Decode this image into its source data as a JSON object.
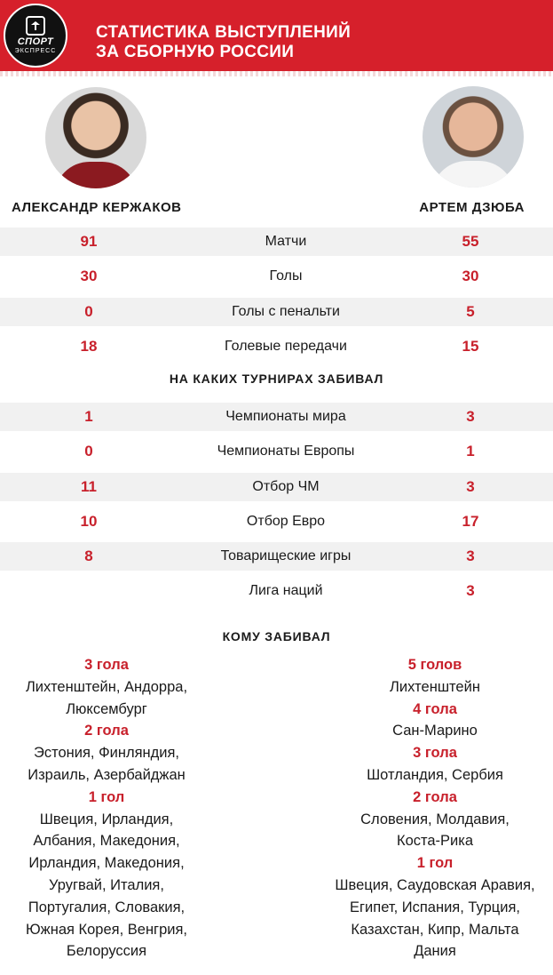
{
  "header": {
    "logo_line1": "СПОРТ",
    "logo_line2": "ЭКСПРЕСС",
    "title_line1": "СТАТИСТИКА ВЫСТУПЛЕНИЙ",
    "title_line2": "ЗА СБОРНУЮ РОССИИ",
    "accent_color": "#d6202b"
  },
  "players": {
    "left": {
      "name": "АЛЕКСАНДР КЕРЖАКОВ"
    },
    "right": {
      "name": "АРТЕМ ДЗЮБА"
    }
  },
  "stats": [
    {
      "label": "Матчи",
      "left": "91",
      "right": "55"
    },
    {
      "label": "Голы",
      "left": "30",
      "right": "30"
    },
    {
      "label": "Голы с пенальти",
      "left": "0",
      "right": "5"
    },
    {
      "label": "Голевые передачи",
      "left": "18",
      "right": "15"
    }
  ],
  "tournaments_heading": "НА КАКИХ ТУРНИРАХ ЗАБИВАЛ",
  "tournaments": [
    {
      "label": "Чемпионаты мира",
      "left": "1",
      "right": "3"
    },
    {
      "label": "Чемпионаты Европы",
      "left": "0",
      "right": "1"
    },
    {
      "label": "Отбор ЧМ",
      "left": "11",
      "right": "3"
    },
    {
      "label": "Отбор Евро",
      "left": "10",
      "right": "17"
    },
    {
      "label": "Товарищеские  игры",
      "left": "8",
      "right": "3"
    },
    {
      "label": "Лига наций",
      "left": "",
      "right": "3"
    }
  ],
  "opponents_heading": "КОМУ ЗАБИВАЛ",
  "opponents": {
    "left": [
      {
        "type": "h",
        "text": "3 гола"
      },
      {
        "type": "t",
        "text": "Лихтенштейн, Андорра,"
      },
      {
        "type": "t",
        "text": "Люксембург"
      },
      {
        "type": "h",
        "text": "2 гола"
      },
      {
        "type": "t",
        "text": "Эстония, Финляндия,"
      },
      {
        "type": "t",
        "text": "Израиль, Азербайджан"
      },
      {
        "type": "h",
        "text": "1 гол"
      },
      {
        "type": "t",
        "text": "Швеция, Ирландия,"
      },
      {
        "type": "t",
        "text": "Албания, Македония,"
      },
      {
        "type": "t",
        "text": "Ирландия, Македония,"
      },
      {
        "type": "t",
        "text": "Уругвай, Италия,"
      },
      {
        "type": "t",
        "text": "Португалия, Словакия,"
      },
      {
        "type": "t",
        "text": "Южная Корея, Венгрия,"
      },
      {
        "type": "t",
        "text": "Белоруссия"
      }
    ],
    "right": [
      {
        "type": "h",
        "text": "5 голов"
      },
      {
        "type": "t",
        "text": "Лихтенштейн"
      },
      {
        "type": "h",
        "text": "4 гола"
      },
      {
        "type": "t",
        "text": "Сан-Марино"
      },
      {
        "type": "h",
        "text": "3 гола"
      },
      {
        "type": "t",
        "text": "Шотландия, Сербия"
      },
      {
        "type": "h",
        "text": "2 гола"
      },
      {
        "type": "t",
        "text": "Словения, Молдавия,"
      },
      {
        "type": "t",
        "text": "Коста-Рика"
      },
      {
        "type": "h",
        "text": "1 гол"
      },
      {
        "type": "t",
        "text": "Швеция, Саудовская Аравия,"
      },
      {
        "type": "t",
        "text": "Египет, Испания, Турция,"
      },
      {
        "type": "t",
        "text": "Казахстан, Кипр, Мальта"
      },
      {
        "type": "t",
        "text": "Дания"
      }
    ]
  }
}
